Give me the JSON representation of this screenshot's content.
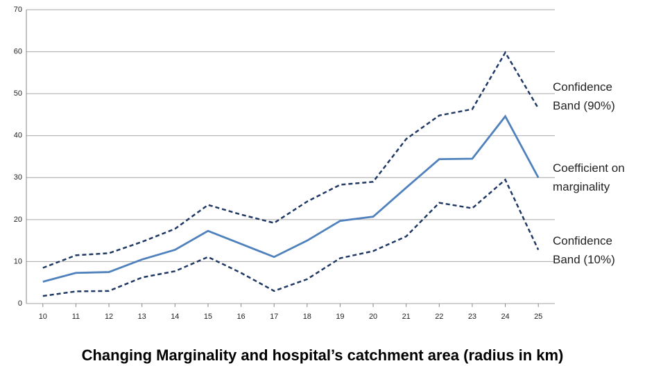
{
  "chart_data": {
    "type": "line",
    "title": "Changing Marginality and hospital’s catchment area (radius in km)",
    "x": [
      10,
      11,
      12,
      13,
      14,
      15,
      16,
      17,
      18,
      19,
      20,
      21,
      22,
      23,
      24,
      25
    ],
    "xlim": [
      9.5,
      25.5
    ],
    "xticks": [
      10,
      11,
      12,
      13,
      14,
      15,
      16,
      17,
      18,
      19,
      20,
      21,
      22,
      23,
      24,
      25
    ],
    "ylim": [
      0,
      70
    ],
    "yticks": [
      0,
      10,
      20,
      30,
      40,
      50,
      60,
      70
    ],
    "grid": true,
    "series": [
      {
        "name": "Confidence Band (90%)",
        "color": "#1f3864",
        "dashed": true,
        "values": [
          8.5,
          11.5,
          12,
          14.7,
          17.8,
          23.5,
          21.2,
          19.2,
          24.3,
          28.3,
          29,
          39.2,
          44.8,
          46.3,
          59.8,
          46.5
        ]
      },
      {
        "name": "Coefficient on marginality",
        "color": "#4f81bd",
        "dashed": false,
        "values": [
          5.2,
          7.3,
          7.5,
          10.5,
          12.8,
          17.3,
          14.2,
          11.1,
          15,
          19.7,
          20.7,
          27.6,
          34.4,
          34.5,
          44.6,
          30
        ]
      },
      {
        "name": "Confidence Band (10%)",
        "color": "#1f3864",
        "dashed": true,
        "values": [
          1.8,
          2.9,
          3,
          6.2,
          7.7,
          11.1,
          7.3,
          3,
          5.8,
          10.8,
          12.5,
          16,
          24,
          22.7,
          29.5,
          12.8
        ]
      }
    ]
  }
}
